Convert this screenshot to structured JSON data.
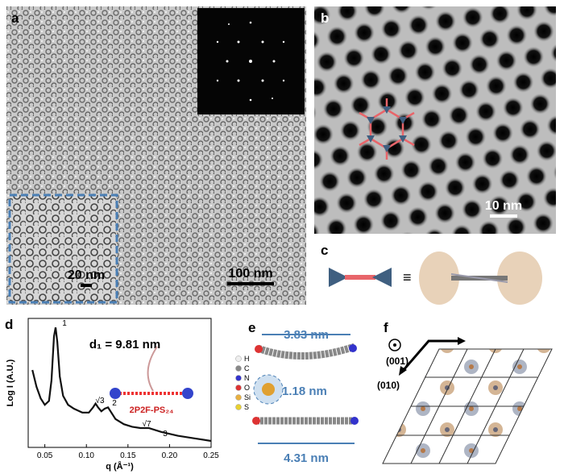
{
  "panels": {
    "a": {
      "label": "a",
      "inset_scale": "20 nm",
      "scale": "100 nm"
    },
    "b": {
      "label": "b",
      "scale": "10 nm"
    },
    "c": {
      "label": "c",
      "symbol": "≡"
    },
    "d": {
      "label": "d",
      "type": "line",
      "annotation": "d₁ = 9.81 nm",
      "molecule": "2P2F-PS₂₄",
      "xlabel": "q (Å⁻¹)",
      "ylabel": "Log I (A.U.)",
      "x": [
        0.035,
        0.04,
        0.045,
        0.05,
        0.055,
        0.058,
        0.061,
        0.063,
        0.065,
        0.068,
        0.072,
        0.078,
        0.085,
        0.095,
        0.103,
        0.108,
        0.111,
        0.114,
        0.118,
        0.122,
        0.126,
        0.13,
        0.135,
        0.145,
        0.155,
        0.165,
        0.175,
        0.19,
        0.21,
        0.23,
        0.25
      ],
      "values": [
        0.6,
        0.47,
        0.38,
        0.33,
        0.36,
        0.52,
        0.86,
        0.93,
        0.82,
        0.55,
        0.4,
        0.33,
        0.3,
        0.27,
        0.27,
        0.31,
        0.34,
        0.31,
        0.28,
        0.3,
        0.31,
        0.27,
        0.22,
        0.18,
        0.16,
        0.15,
        0.15,
        0.12,
        0.09,
        0.07,
        0.05
      ],
      "xlim": [
        0.03,
        0.25
      ],
      "ylim": [
        0,
        1
      ],
      "xticks": [
        {
          "value": 0.05,
          "label": "0.05"
        },
        {
          "value": 0.1,
          "label": "0.10"
        },
        {
          "value": 0.15,
          "label": "0.15"
        },
        {
          "value": 0.2,
          "label": "0.20"
        },
        {
          "value": 0.25,
          "label": "0.25"
        }
      ],
      "peak_labels": [
        "1",
        "√3",
        "2",
        "√7",
        "3"
      ],
      "color": "#111111"
    },
    "e": {
      "label": "e",
      "lengths": [
        "3.83 nm",
        "1.18 nm",
        "4.31 nm"
      ],
      "elements": [
        "H",
        "C",
        "N",
        "O",
        "Si",
        "S"
      ]
    },
    "f": {
      "label": "f",
      "directions": [
        "(001)",
        "(010)"
      ]
    }
  }
}
